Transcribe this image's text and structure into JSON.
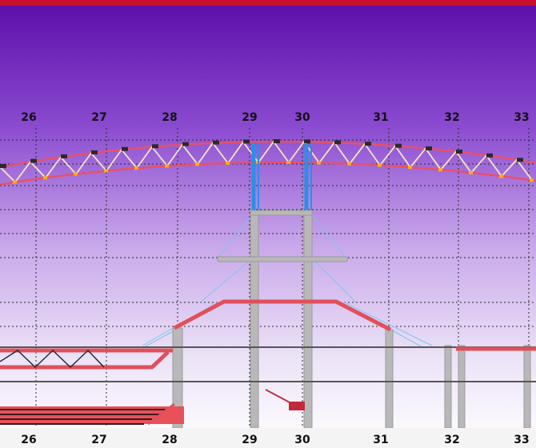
{
  "colors": {
    "top_border": "#c8102e",
    "bg_top": "#5a0fa8",
    "bg_bottom": "#ffffff",
    "truss_chord": "#e8506a",
    "truss_web": "#f4e6c8",
    "column": "#b0b0b0",
    "blue_brace": "#2a90e6",
    "red_member": "#e0505a",
    "grid": "#333333"
  },
  "axes": {
    "top": [
      "26",
      "27",
      "28",
      "29",
      "30",
      "31",
      "32",
      "33"
    ],
    "bottom": [
      "26",
      "27",
      "28",
      "29",
      "30",
      "31",
      "32",
      "33"
    ]
  }
}
